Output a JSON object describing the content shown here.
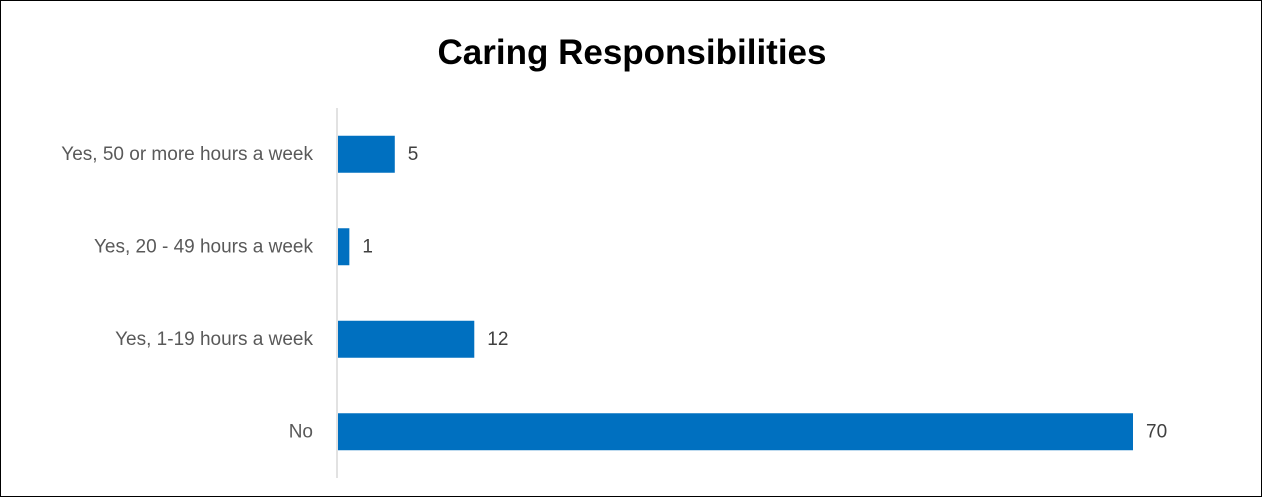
{
  "chart_data": {
    "type": "bar",
    "orientation": "horizontal",
    "title": "Caring Responsibilities",
    "categories": [
      "Yes, 50 or more hours a week",
      "Yes, 20 - 49 hours a week",
      "Yes, 1-19 hours a week",
      "No"
    ],
    "values": [
      5,
      1,
      12,
      70
    ],
    "xlim": [
      0,
      70
    ],
    "data_labels": true,
    "grid": false,
    "legend": "none",
    "bar_color": "#0070C0",
    "axis_color": "#D9D9D9"
  }
}
